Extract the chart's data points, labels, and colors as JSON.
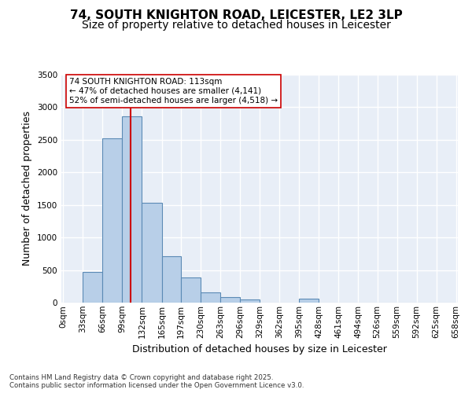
{
  "title_line1": "74, SOUTH KNIGHTON ROAD, LEICESTER, LE2 3LP",
  "title_line2": "Size of property relative to detached houses in Leicester",
  "xlabel": "Distribution of detached houses by size in Leicester",
  "ylabel": "Number of detached properties",
  "bin_labels": [
    "0sqm",
    "33sqm",
    "66sqm",
    "99sqm",
    "132sqm",
    "165sqm",
    "197sqm",
    "230sqm",
    "263sqm",
    "296sqm",
    "329sqm",
    "362sqm",
    "395sqm",
    "428sqm",
    "461sqm",
    "494sqm",
    "526sqm",
    "559sqm",
    "592sqm",
    "625sqm",
    "658sqm"
  ],
  "bin_edges": [
    0,
    33,
    66,
    99,
    132,
    165,
    197,
    230,
    263,
    296,
    329,
    362,
    395,
    428,
    461,
    494,
    526,
    559,
    592,
    625,
    658
  ],
  "bar_heights": [
    0,
    470,
    2520,
    2860,
    1530,
    710,
    390,
    155,
    90,
    45,
    0,
    0,
    55,
    0,
    0,
    0,
    0,
    0,
    0,
    0
  ],
  "bar_color": "#b8cfe8",
  "bar_edge_color": "#5b8ab5",
  "vline_x": 113,
  "vline_color": "#cc0000",
  "annotation_box_text": "74 SOUTH KNIGHTON ROAD: 113sqm\n← 47% of detached houses are smaller (4,141)\n52% of semi-detached houses are larger (4,518) →",
  "ylim": [
    0,
    3500
  ],
  "yticks": [
    0,
    500,
    1000,
    1500,
    2000,
    2500,
    3000,
    3500
  ],
  "background_color": "#e8eef7",
  "grid_color": "#ffffff",
  "footer_text": "Contains HM Land Registry data © Crown copyright and database right 2025.\nContains public sector information licensed under the Open Government Licence v3.0.",
  "title_fontsize": 11,
  "subtitle_fontsize": 10,
  "tick_fontsize": 7.5,
  "ylabel_fontsize": 9,
  "xlabel_fontsize": 9
}
